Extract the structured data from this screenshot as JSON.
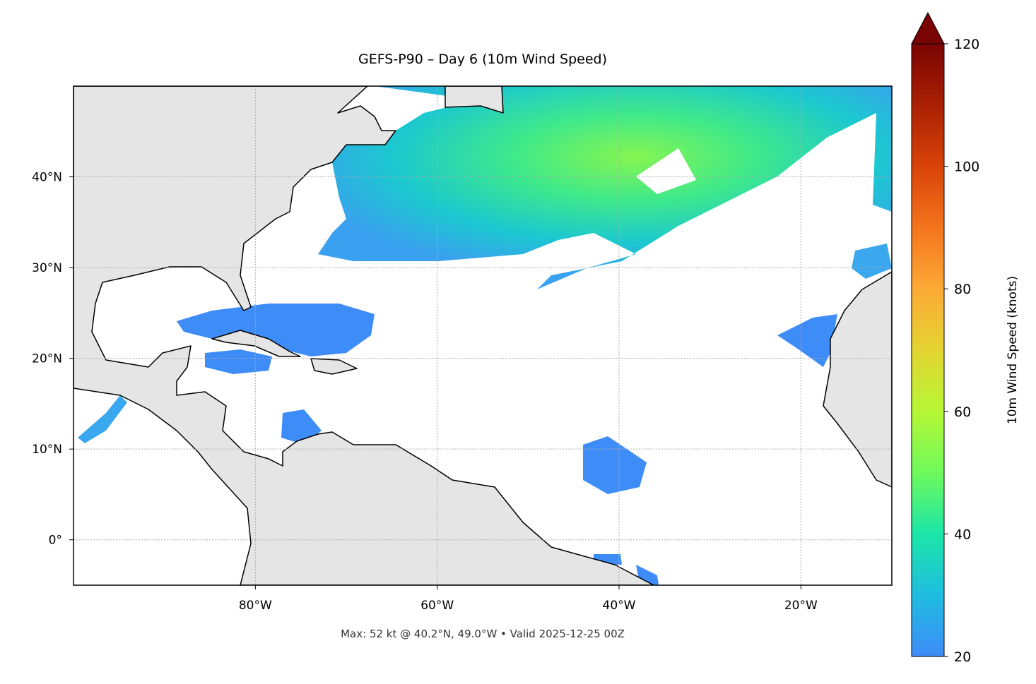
{
  "title": "GEFS-P90 – Day 6 (10m Wind Speed)",
  "footer": "Max: 52 kt @ 40.2°N, 49.0°W • Valid 2025-12-25 00Z",
  "map": {
    "xlim": [
      -100,
      -10
    ],
    "ylim": [
      -5,
      50
    ],
    "xticks": [
      {
        "value": -80,
        "label": "80°W"
      },
      {
        "value": -60,
        "label": "60°W"
      },
      {
        "value": -40,
        "label": "40°W"
      },
      {
        "value": -20,
        "label": "20°W"
      }
    ],
    "yticks": [
      {
        "value": 0,
        "label": "0°"
      },
      {
        "value": 10,
        "label": "10°N"
      },
      {
        "value": 20,
        "label": "20°N"
      },
      {
        "value": 30,
        "label": "30°N"
      },
      {
        "value": 40,
        "label": "40°N"
      }
    ]
  },
  "colorbar": {
    "label": "10m Wind Speed (knots)",
    "lim": [
      20,
      120
    ],
    "ticks": [
      20,
      40,
      60,
      80,
      100,
      120
    ]
  }
}
